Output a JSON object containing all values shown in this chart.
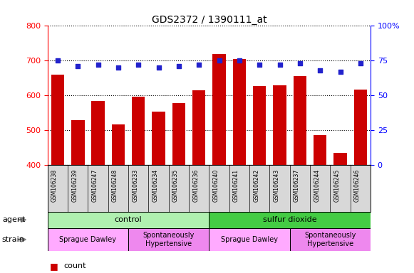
{
  "title": "GDS2372 / 1390111_at",
  "samples": [
    "GSM106238",
    "GSM106239",
    "GSM106247",
    "GSM106248",
    "GSM106233",
    "GSM106234",
    "GSM106235",
    "GSM106236",
    "GSM106240",
    "GSM106241",
    "GSM106242",
    "GSM106243",
    "GSM106237",
    "GSM106244",
    "GSM106245",
    "GSM106246"
  ],
  "counts": [
    660,
    530,
    585,
    518,
    597,
    553,
    578,
    615,
    720,
    705,
    627,
    630,
    655,
    487,
    435,
    618
  ],
  "percentiles": [
    75,
    71,
    72,
    70,
    72,
    70,
    71,
    72,
    75,
    75,
    72,
    72,
    73,
    68,
    67,
    73
  ],
  "bar_color": "#cc0000",
  "dot_color": "#2222cc",
  "ylim_left": [
    400,
    800
  ],
  "ylim_right": [
    0,
    100
  ],
  "yticks_left": [
    400,
    500,
    600,
    700,
    800
  ],
  "yticks_right": [
    0,
    25,
    50,
    75,
    100
  ],
  "agent_groups": [
    {
      "label": "control",
      "start": 0,
      "end": 8,
      "color": "#b0f0b0"
    },
    {
      "label": "sulfur dioxide",
      "start": 8,
      "end": 16,
      "color": "#44cc44"
    }
  ],
  "strain_groups": [
    {
      "label": "Sprague Dawley",
      "start": 0,
      "end": 4,
      "color": "#ffaaff"
    },
    {
      "label": "Spontaneously\nHypertensive",
      "start": 4,
      "end": 8,
      "color": "#ee88ee"
    },
    {
      "label": "Sprague Dawley",
      "start": 8,
      "end": 12,
      "color": "#ffaaff"
    },
    {
      "label": "Spontaneously\nHypertensive",
      "start": 12,
      "end": 16,
      "color": "#ee88ee"
    }
  ],
  "xticklabel_bg": "#d8d8d8",
  "agent_arrow_color": "#888888",
  "strain_arrow_color": "#888888"
}
